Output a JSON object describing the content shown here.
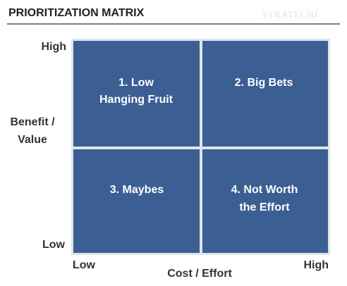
{
  "header": {
    "title": "PRIORITIZATION MATRIX",
    "watermark": "STRATECHI"
  },
  "y_axis": {
    "label_lines": [
      "Benefit /",
      "Value"
    ],
    "high": "High",
    "low": "Low"
  },
  "x_axis": {
    "label": "Cost / Effort",
    "low": "Low",
    "high": "High"
  },
  "quadrants": [
    {
      "lines": [
        "1. Low",
        "Hanging Fruit"
      ]
    },
    {
      "lines": [
        "2. Big Bets"
      ]
    },
    {
      "lines": [
        "3. Maybes"
      ]
    },
    {
      "lines": [
        "4. Not Worth",
        "the Effort"
      ]
    }
  ]
}
